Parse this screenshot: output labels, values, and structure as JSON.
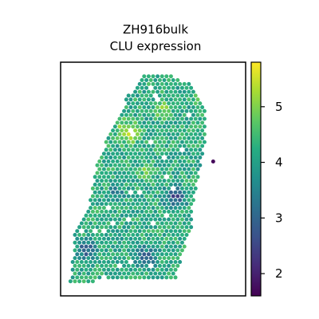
{
  "chart_data": {
    "type": "scatter",
    "title_lines": [
      "ZH916bulk",
      "CLU expression"
    ],
    "xlabel": "",
    "ylabel": "",
    "grid": false,
    "axes_ticks": false,
    "colorbar": {
      "colormap": "viridis",
      "range": [
        1.6,
        5.8
      ],
      "ticks": [
        2,
        3,
        4,
        5
      ],
      "tick_labels": [
        "2",
        "3",
        "4",
        "5"
      ],
      "placement": "right"
    },
    "tissue_outline": [
      [
        0.45,
        0.05
      ],
      [
        0.6,
        0.06
      ],
      [
        0.72,
        0.1
      ],
      [
        0.78,
        0.2
      ],
      [
        0.78,
        0.34
      ],
      [
        0.75,
        0.46
      ],
      [
        0.72,
        0.58
      ],
      [
        0.71,
        0.7
      ],
      [
        0.66,
        0.82
      ],
      [
        0.62,
        0.93
      ],
      [
        0.05,
        0.94
      ],
      [
        0.08,
        0.72
      ],
      [
        0.16,
        0.6
      ],
      [
        0.19,
        0.44
      ],
      [
        0.27,
        0.3
      ],
      [
        0.36,
        0.15
      ]
    ],
    "low_expression_regions": [
      {
        "cx": 0.62,
        "cy": 0.58,
        "r": 0.09,
        "value": 2.8
      },
      {
        "cx": 0.14,
        "cy": 0.8,
        "r": 0.08,
        "value": 3.0
      },
      {
        "cx": 0.46,
        "cy": 0.83,
        "r": 0.09,
        "value": 3.2
      },
      {
        "cx": 0.3,
        "cy": 0.56,
        "r": 0.06,
        "value": 3.4
      }
    ],
    "high_expression_regions": [
      {
        "cx": 0.36,
        "cy": 0.3,
        "r": 0.09,
        "value": 5.4
      },
      {
        "cx": 0.56,
        "cy": 0.2,
        "r": 0.07,
        "value": 5.0
      },
      {
        "cx": 0.46,
        "cy": 0.47,
        "r": 0.07,
        "value": 4.8
      },
      {
        "cx": 0.74,
        "cy": 0.15,
        "r": 0.04,
        "value": 5.1
      }
    ],
    "baseline_value": 4.2,
    "outlier_points": [
      {
        "x": 0.76,
        "y": 0.425,
        "value": 1.7
      }
    ]
  }
}
